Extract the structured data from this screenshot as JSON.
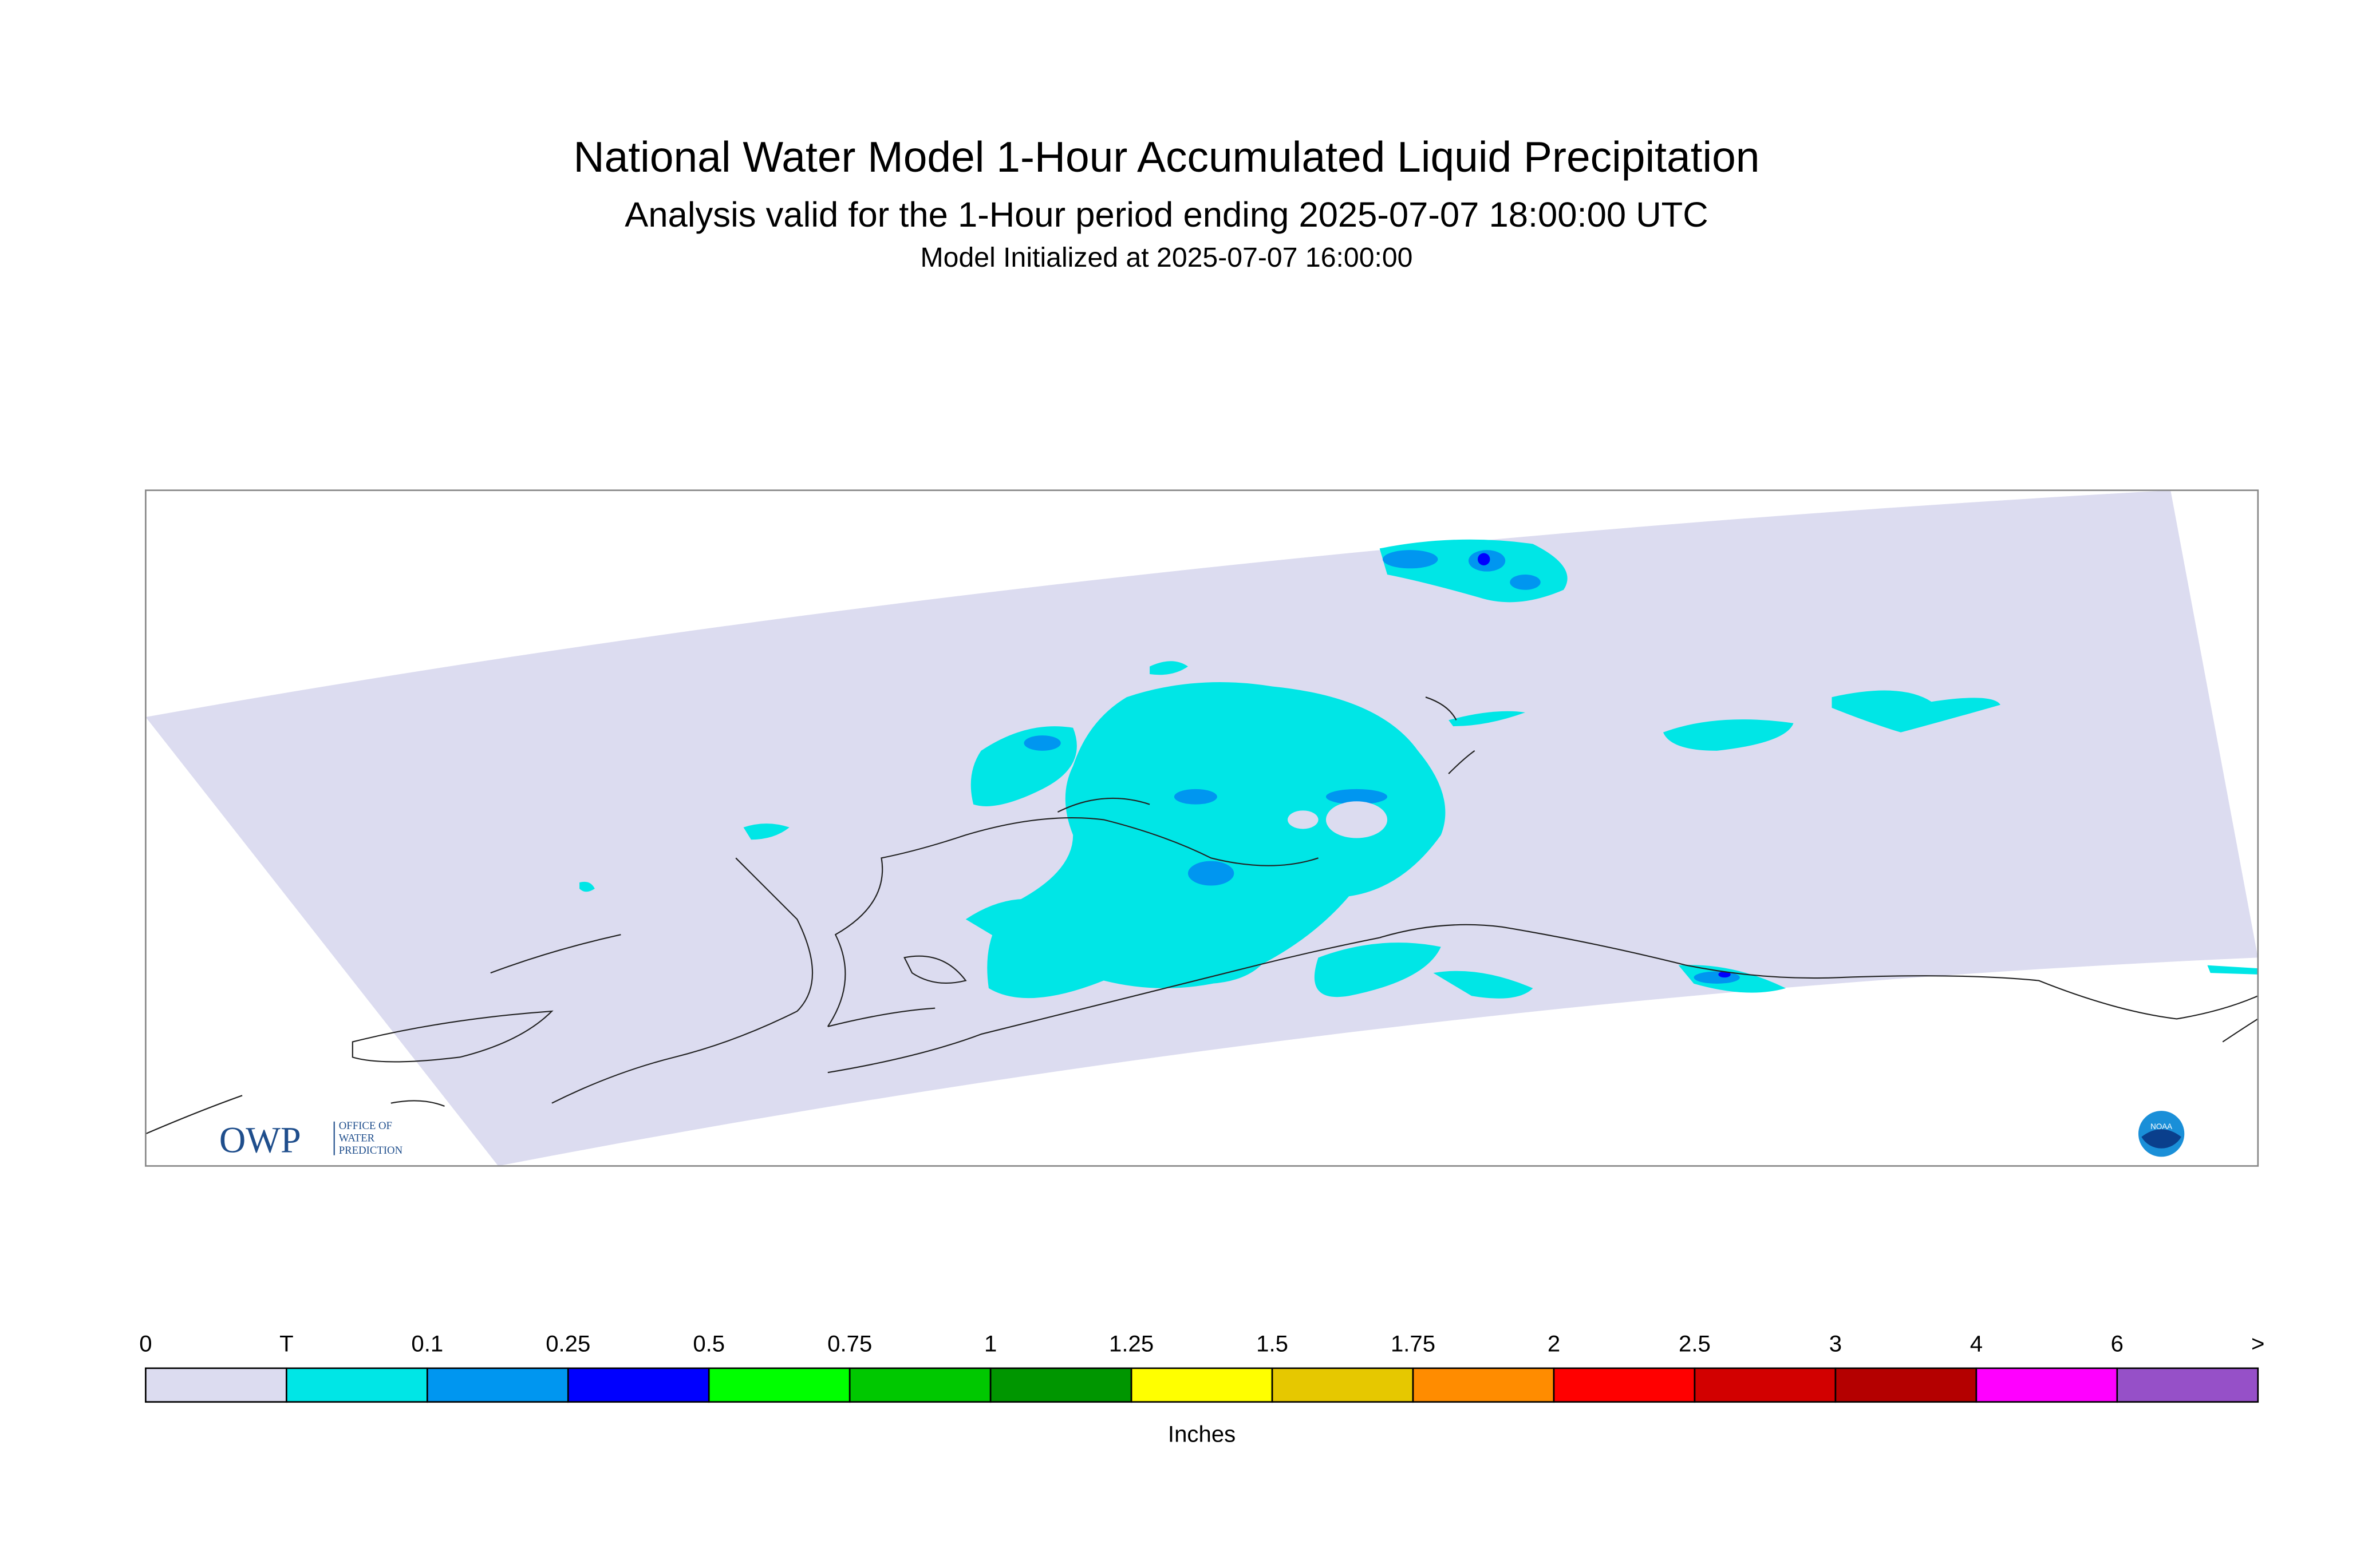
{
  "header": {
    "title": "National Water Model 1-Hour Accumulated Liquid Precipitation",
    "subtitle": "Analysis valid for the 1-Hour period ending 2025-07-07 18:00:00 UTC",
    "initialized": "Model Initialized at 2025-07-07 16:00:00"
  },
  "logo": {
    "owp": "OWP",
    "office": [
      "OFFICE OF",
      "WATER",
      "PREDICTION"
    ],
    "noaa": "NOAA"
  },
  "legend": {
    "labels": [
      "0",
      "T",
      "0.1",
      "0.25",
      "0.5",
      "0.75",
      "1",
      "1.25",
      "1.5",
      "1.75",
      "2",
      "2.5",
      "3",
      "4",
      "6",
      ">"
    ],
    "colors": [
      "#dcdcf0",
      "#00e6e6",
      "#0096f0",
      "#0000ff",
      "#00ff00",
      "#00c800",
      "#009600",
      "#ffff00",
      "#e6c800",
      "#ff8c00",
      "#ff0000",
      "#d20000",
      "#b40000",
      "#ff00ff",
      "#9650c8"
    ],
    "units": "Inches"
  }
}
